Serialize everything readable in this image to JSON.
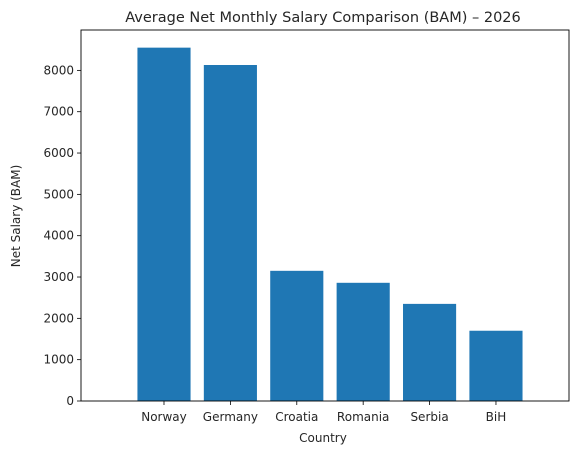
{
  "chart_data": {
    "type": "bar",
    "title": "Average Net Monthly Salary Comparison (BAM) – 2026",
    "xlabel": "Country",
    "ylabel": "Net Salary (BAM)",
    "categories": [
      "Norway",
      "Germany",
      "Croatia",
      "Romania",
      "Serbia",
      "BiH"
    ],
    "values": [
      8550,
      8130,
      3150,
      2860,
      2350,
      1700
    ],
    "ylim": [
      0,
      8977
    ],
    "yticks": [
      0,
      1000,
      2000,
      3000,
      4000,
      5000,
      6000,
      7000,
      8000
    ],
    "bar_color": "#1f77b4",
    "grid": false,
    "legend": "none"
  }
}
